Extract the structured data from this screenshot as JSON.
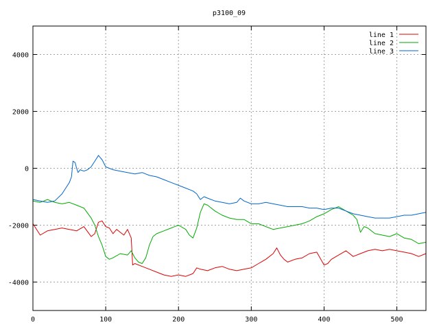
{
  "chart_data": {
    "type": "line",
    "title": "p3100_09",
    "xlabel": "",
    "ylabel": "",
    "xlim": [
      0,
      540
    ],
    "ylim": [
      -5000,
      5000
    ],
    "x_ticks": [
      0,
      100,
      200,
      300,
      400,
      500
    ],
    "y_ticks": [
      -4000,
      -2000,
      0,
      2000,
      4000
    ],
    "grid": true,
    "legend_position": "top-right",
    "series": [
      {
        "name": "line 1",
        "color": "#dd0000",
        "points": [
          [
            0,
            -1950
          ],
          [
            10,
            -2350
          ],
          [
            20,
            -2200
          ],
          [
            30,
            -2150
          ],
          [
            40,
            -2100
          ],
          [
            50,
            -2150
          ],
          [
            60,
            -2200
          ],
          [
            70,
            -2050
          ],
          [
            80,
            -2400
          ],
          [
            85,
            -2300
          ],
          [
            90,
            -1900
          ],
          [
            95,
            -1850
          ],
          [
            100,
            -2050
          ],
          [
            105,
            -2100
          ],
          [
            110,
            -2300
          ],
          [
            115,
            -2150
          ],
          [
            120,
            -2250
          ],
          [
            125,
            -2350
          ],
          [
            130,
            -2150
          ],
          [
            135,
            -2450
          ],
          [
            137,
            -3400
          ],
          [
            140,
            -3350
          ],
          [
            150,
            -3450
          ],
          [
            160,
            -3550
          ],
          [
            170,
            -3650
          ],
          [
            180,
            -3750
          ],
          [
            190,
            -3800
          ],
          [
            200,
            -3750
          ],
          [
            210,
            -3800
          ],
          [
            220,
            -3700
          ],
          [
            225,
            -3500
          ],
          [
            230,
            -3550
          ],
          [
            240,
            -3600
          ],
          [
            250,
            -3500
          ],
          [
            260,
            -3450
          ],
          [
            270,
            -3550
          ],
          [
            280,
            -3600
          ],
          [
            290,
            -3550
          ],
          [
            300,
            -3500
          ],
          [
            310,
            -3350
          ],
          [
            320,
            -3200
          ],
          [
            330,
            -3000
          ],
          [
            335,
            -2800
          ],
          [
            340,
            -3050
          ],
          [
            345,
            -3200
          ],
          [
            350,
            -3300
          ],
          [
            360,
            -3200
          ],
          [
            370,
            -3150
          ],
          [
            380,
            -3000
          ],
          [
            390,
            -2950
          ],
          [
            400,
            -3400
          ],
          [
            405,
            -3350
          ],
          [
            410,
            -3200
          ],
          [
            420,
            -3050
          ],
          [
            430,
            -2900
          ],
          [
            440,
            -3100
          ],
          [
            450,
            -3000
          ],
          [
            460,
            -2900
          ],
          [
            470,
            -2850
          ],
          [
            480,
            -2900
          ],
          [
            490,
            -2850
          ],
          [
            500,
            -2900
          ],
          [
            510,
            -2950
          ],
          [
            520,
            -3000
          ],
          [
            530,
            -3100
          ],
          [
            540,
            -3000
          ]
        ]
      },
      {
        "name": "line 2",
        "color": "#00aa00",
        "points": [
          [
            0,
            -1150
          ],
          [
            10,
            -1200
          ],
          [
            20,
            -1100
          ],
          [
            30,
            -1200
          ],
          [
            40,
            -1250
          ],
          [
            50,
            -1200
          ],
          [
            60,
            -1300
          ],
          [
            70,
            -1400
          ],
          [
            80,
            -1750
          ],
          [
            85,
            -2000
          ],
          [
            90,
            -2400
          ],
          [
            95,
            -2700
          ],
          [
            100,
            -3100
          ],
          [
            105,
            -3200
          ],
          [
            110,
            -3150
          ],
          [
            120,
            -3000
          ],
          [
            130,
            -3050
          ],
          [
            135,
            -2900
          ],
          [
            140,
            -3150
          ],
          [
            145,
            -3300
          ],
          [
            150,
            -3350
          ],
          [
            155,
            -3150
          ],
          [
            160,
            -2700
          ],
          [
            165,
            -2400
          ],
          [
            170,
            -2300
          ],
          [
            180,
            -2200
          ],
          [
            190,
            -2100
          ],
          [
            200,
            -2000
          ],
          [
            210,
            -2150
          ],
          [
            215,
            -2350
          ],
          [
            220,
            -2450
          ],
          [
            225,
            -2100
          ],
          [
            230,
            -1550
          ],
          [
            235,
            -1250
          ],
          [
            240,
            -1300
          ],
          [
            250,
            -1500
          ],
          [
            260,
            -1650
          ],
          [
            270,
            -1750
          ],
          [
            280,
            -1800
          ],
          [
            290,
            -1800
          ],
          [
            300,
            -1950
          ],
          [
            310,
            -1950
          ],
          [
            320,
            -2050
          ],
          [
            330,
            -2150
          ],
          [
            340,
            -2100
          ],
          [
            350,
            -2050
          ],
          [
            360,
            -2000
          ],
          [
            370,
            -1950
          ],
          [
            380,
            -1850
          ],
          [
            390,
            -1700
          ],
          [
            400,
            -1600
          ],
          [
            410,
            -1450
          ],
          [
            420,
            -1350
          ],
          [
            430,
            -1500
          ],
          [
            440,
            -1650
          ],
          [
            445,
            -1800
          ],
          [
            450,
            -2250
          ],
          [
            455,
            -2050
          ],
          [
            460,
            -2100
          ],
          [
            470,
            -2300
          ],
          [
            480,
            -2350
          ],
          [
            490,
            -2400
          ],
          [
            500,
            -2300
          ],
          [
            510,
            -2450
          ],
          [
            520,
            -2500
          ],
          [
            530,
            -2650
          ],
          [
            540,
            -2600
          ]
        ]
      },
      {
        "name": "line 3",
        "color": "#0066cc",
        "points": [
          [
            0,
            -1100
          ],
          [
            10,
            -1150
          ],
          [
            20,
            -1200
          ],
          [
            30,
            -1150
          ],
          [
            40,
            -900
          ],
          [
            45,
            -700
          ],
          [
            50,
            -500
          ],
          [
            53,
            -300
          ],
          [
            55,
            250
          ],
          [
            58,
            200
          ],
          [
            60,
            0
          ],
          [
            62,
            -150
          ],
          [
            65,
            -50
          ],
          [
            70,
            -100
          ],
          [
            75,
            -50
          ],
          [
            80,
            50
          ],
          [
            85,
            250
          ],
          [
            90,
            450
          ],
          [
            95,
            300
          ],
          [
            100,
            50
          ],
          [
            110,
            -50
          ],
          [
            120,
            -100
          ],
          [
            130,
            -150
          ],
          [
            140,
            -200
          ],
          [
            150,
            -150
          ],
          [
            160,
            -250
          ],
          [
            170,
            -300
          ],
          [
            180,
            -400
          ],
          [
            190,
            -500
          ],
          [
            200,
            -600
          ],
          [
            210,
            -700
          ],
          [
            220,
            -800
          ],
          [
            225,
            -900
          ],
          [
            230,
            -1100
          ],
          [
            235,
            -1000
          ],
          [
            240,
            -1050
          ],
          [
            250,
            -1150
          ],
          [
            260,
            -1200
          ],
          [
            270,
            -1250
          ],
          [
            280,
            -1200
          ],
          [
            285,
            -1050
          ],
          [
            290,
            -1150
          ],
          [
            300,
            -1250
          ],
          [
            310,
            -1250
          ],
          [
            320,
            -1200
          ],
          [
            330,
            -1250
          ],
          [
            340,
            -1300
          ],
          [
            350,
            -1350
          ],
          [
            360,
            -1350
          ],
          [
            370,
            -1350
          ],
          [
            380,
            -1400
          ],
          [
            390,
            -1400
          ],
          [
            400,
            -1450
          ],
          [
            410,
            -1400
          ],
          [
            420,
            -1400
          ],
          [
            430,
            -1500
          ],
          [
            440,
            -1600
          ],
          [
            450,
            -1650
          ],
          [
            460,
            -1700
          ],
          [
            470,
            -1750
          ],
          [
            480,
            -1750
          ],
          [
            490,
            -1750
          ],
          [
            500,
            -1700
          ],
          [
            510,
            -1650
          ],
          [
            520,
            -1650
          ],
          [
            530,
            -1600
          ],
          [
            540,
            -1550
          ]
        ]
      }
    ]
  }
}
